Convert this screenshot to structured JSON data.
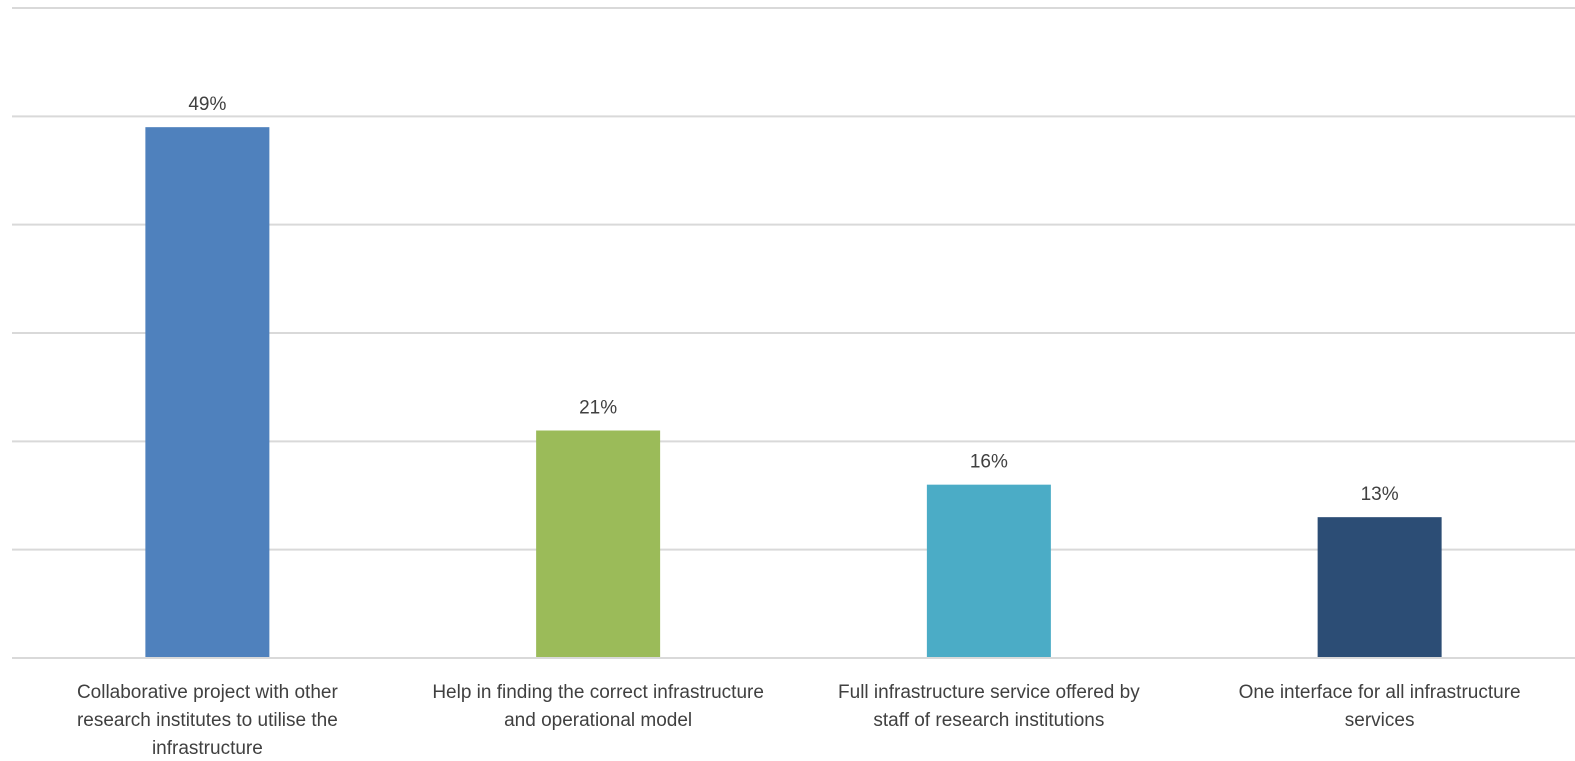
{
  "chart_data": {
    "type": "bar",
    "categories": [
      "Collaborative project with other research institutes to utilise the infrastructure",
      "Help in finding the correct infrastructure and operational model",
      "Full infrastructure service offered by staff of research institutions",
      "One interface for all infrastructure services"
    ],
    "category_label_lines": [
      [
        "Collaborative project with other",
        "research institutes to utilise the",
        "infrastructure"
      ],
      [
        "Help in finding the correct infrastructure",
        "and operational model"
      ],
      [
        "Full infrastructure service offered by",
        "staff of research institutions"
      ],
      [
        "One interface for all infrastructure",
        "services"
      ]
    ],
    "values": [
      49,
      21,
      16,
      13
    ],
    "data_labels": [
      "49%",
      "21%",
      "16%",
      "13%"
    ],
    "colors": [
      "#4f81bd",
      "#9bbb59",
      "#4bacc6",
      "#2c4d75"
    ],
    "ylim": [
      0,
      60
    ],
    "ytick_step": 10,
    "grid": true,
    "title": "",
    "xlabel": "",
    "ylabel": ""
  }
}
